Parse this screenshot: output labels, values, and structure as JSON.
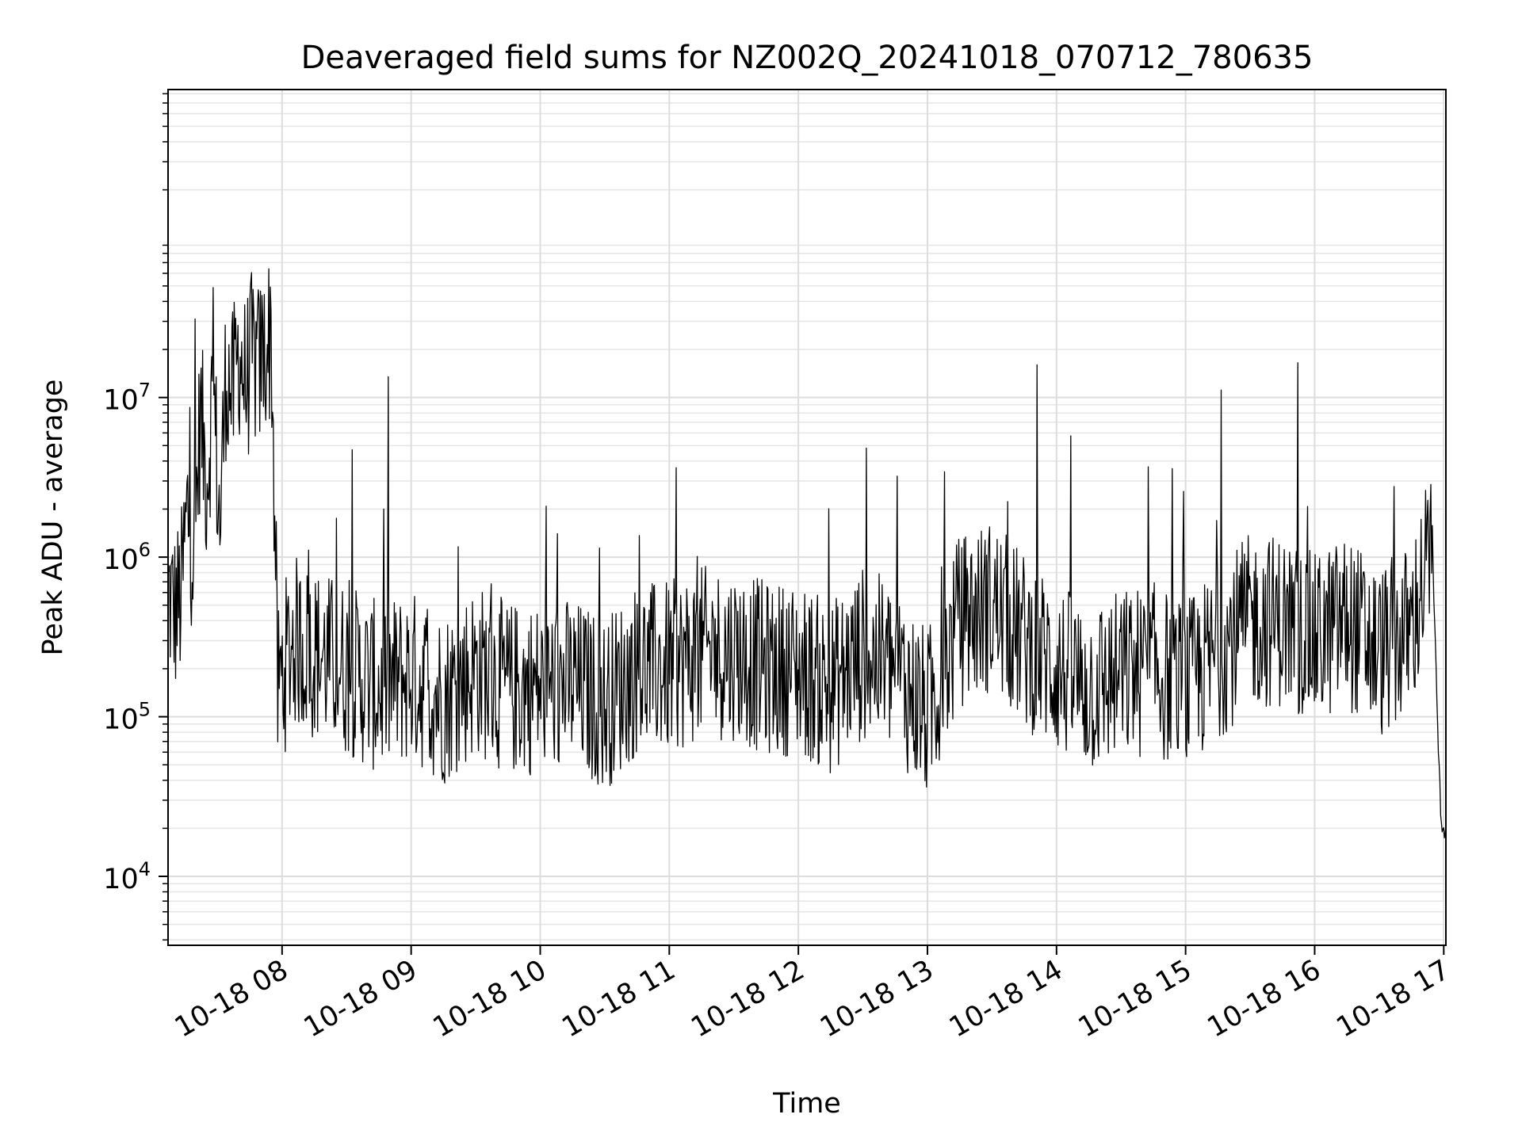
{
  "chart_data": {
    "type": "line",
    "title": "Deaveraged field sums for NZ002Q_20241018_070712_780635",
    "xlabel": "Time",
    "ylabel": "Peak ADU - average",
    "yscale": "log",
    "ylim": [
      3700,
      850000000
    ],
    "xlim": [
      "10-18 07:07",
      "10-18 17:01"
    ],
    "grid": true,
    "line_color": "#000000",
    "x_ticks": [
      "10-18 08",
      "10-18 09",
      "10-18 10",
      "10-18 11",
      "10-18 12",
      "10-18 13",
      "10-18 14",
      "10-18 15",
      "10-18 16",
      "10-18 17"
    ],
    "y_ticks": [
      {
        "base": "10",
        "exp": "4",
        "value": 10000
      },
      {
        "base": "10",
        "exp": "5",
        "value": 100000
      },
      {
        "base": "10",
        "exp": "6",
        "value": 1000000
      },
      {
        "base": "10",
        "exp": "7",
        "value": 10000000
      }
    ],
    "series": [
      {
        "x": [
          "10-18 07:07",
          "10-18 07:10",
          "10-18 07:13",
          "10-18 07:16",
          "10-18 07:19",
          "10-18 07:22",
          "10-18 07:25",
          "10-18 07:28",
          "10-18 07:31",
          "10-18 07:34",
          "10-18 07:37",
          "10-18 07:40",
          "10-18 07:43",
          "10-18 07:46",
          "10-18 07:49",
          "10-18 07:52",
          "10-18 07:55",
          "10-18 07:58",
          "10-18 08:05",
          "10-18 08:15",
          "10-18 08:30",
          "10-18 08:45",
          "10-18 09:00",
          "10-18 09:15",
          "10-18 09:30",
          "10-18 09:45",
          "10-18 10:00",
          "10-18 10:15",
          "10-18 10:30",
          "10-18 10:45",
          "10-18 11:00",
          "10-18 11:15",
          "10-18 11:30",
          "10-18 11:45",
          "10-18 12:00",
          "10-18 12:15",
          "10-18 12:30",
          "10-18 12:45",
          "10-18 13:00",
          "10-18 13:15",
          "10-18 13:30",
          "10-18 13:45",
          "10-18 14:00",
          "10-18 14:15",
          "10-18 14:30",
          "10-18 14:45",
          "10-18 15:00",
          "10-18 15:15",
          "10-18 15:30",
          "10-18 15:45",
          "10-18 16:00",
          "10-18 16:15",
          "10-18 16:30",
          "10-18 16:45",
          "10-18 16:53",
          "10-18 16:55",
          "10-18 16:57",
          "10-18 16:59",
          "10-18 17:01"
        ],
        "values": [
          600000,
          450000,
          550000,
          2000000,
          1000000,
          8000000,
          3000000,
          12000000,
          1500000,
          15000000,
          10000000,
          20000000,
          12000000,
          18000000,
          15000000,
          20000000,
          25000000,
          150000,
          300000,
          250000,
          200000,
          150000,
          180000,
          130000,
          200000,
          150000,
          150000,
          160000,
          120000,
          200000,
          200000,
          250000,
          250000,
          200000,
          200000,
          150000,
          250000,
          200000,
          100000,
          400000,
          500000,
          300000,
          200000,
          150000,
          180000,
          200000,
          150000,
          250000,
          400000,
          400000,
          300000,
          400000,
          250000,
          350000,
          1000000,
          900000,
          100000,
          18000,
          22000
        ]
      }
    ]
  }
}
